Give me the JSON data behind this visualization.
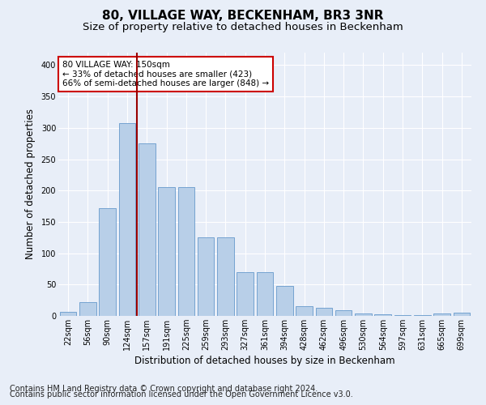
{
  "title": "80, VILLAGE WAY, BECKENHAM, BR3 3NR",
  "subtitle": "Size of property relative to detached houses in Beckenham",
  "xlabel": "Distribution of detached houses by size in Beckenham",
  "ylabel": "Number of detached properties",
  "categories": [
    "22sqm",
    "56sqm",
    "90sqm",
    "124sqm",
    "157sqm",
    "191sqm",
    "225sqm",
    "259sqm",
    "293sqm",
    "327sqm",
    "361sqm",
    "394sqm",
    "428sqm",
    "462sqm",
    "496sqm",
    "530sqm",
    "564sqm",
    "597sqm",
    "631sqm",
    "665sqm",
    "699sqm"
  ],
  "values": [
    7,
    22,
    172,
    308,
    275,
    205,
    205,
    125,
    125,
    70,
    70,
    48,
    15,
    13,
    9,
    4,
    2,
    1,
    1,
    4,
    5
  ],
  "bar_color": "#b8cfe8",
  "bar_edge_color": "#6699cc",
  "vline_color": "#990000",
  "annotation_text": "80 VILLAGE WAY: 150sqm\n← 33% of detached houses are smaller (423)\n66% of semi-detached houses are larger (848) →",
  "annotation_box_color": "#ffffff",
  "annotation_box_edge": "#cc0000",
  "ylim": [
    0,
    420
  ],
  "yticks": [
    0,
    50,
    100,
    150,
    200,
    250,
    300,
    350,
    400
  ],
  "footer1": "Contains HM Land Registry data © Crown copyright and database right 2024.",
  "footer2": "Contains public sector information licensed under the Open Government Licence v3.0.",
  "bg_color": "#e8eef8",
  "plot_bg_color": "#e8eef8",
  "title_fontsize": 11,
  "subtitle_fontsize": 9.5,
  "axis_label_fontsize": 8.5,
  "tick_fontsize": 7,
  "footer_fontsize": 7,
  "bar_width": 0.85,
  "vline_pos": 3.5
}
